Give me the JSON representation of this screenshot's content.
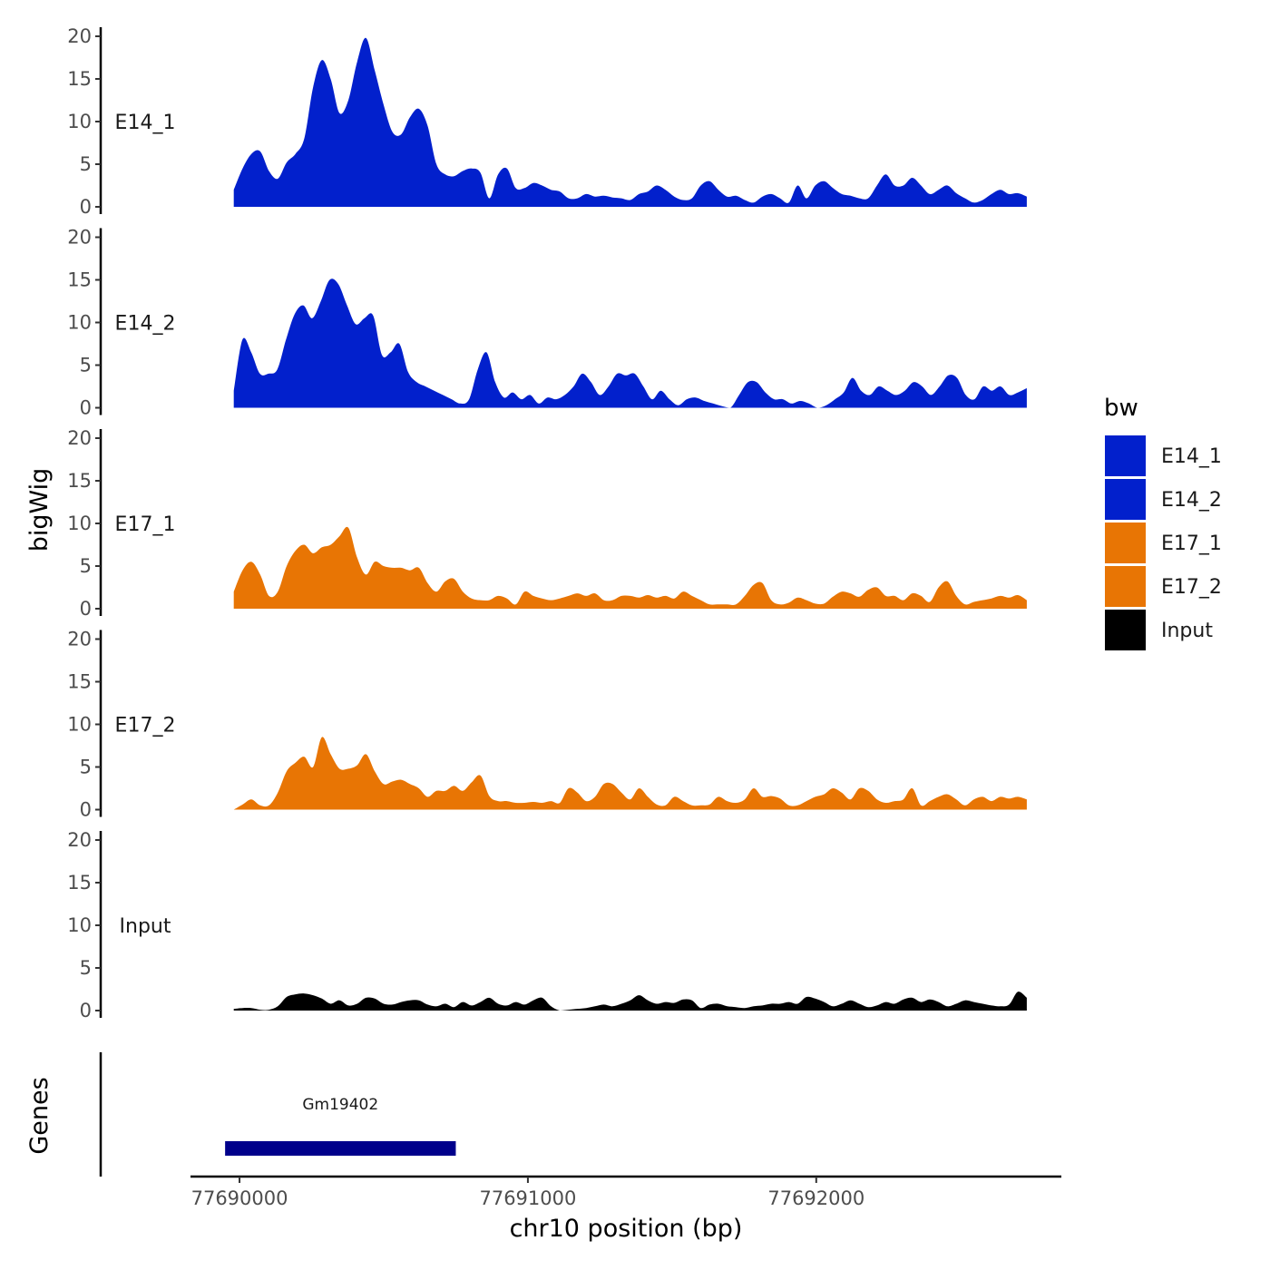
{
  "chart_data": {
    "type": "area",
    "title": "",
    "ylabel": "bigWig",
    "xlabel": "chr10 position (bp)",
    "genes_label": "Genes",
    "ylim": [
      0,
      20
    ],
    "yticks": [
      0,
      5,
      10,
      15,
      20
    ],
    "xlim": [
      77689830,
      77692850
    ],
    "xticks": [
      77690000,
      77691000,
      77692000
    ],
    "xtick_labels": [
      "77690000",
      "77691000",
      "77692000"
    ],
    "x_start": 77689980,
    "x_end": 77692730,
    "legend": {
      "title": "bw",
      "placement": "right",
      "entries": [
        {
          "label": "E14_1",
          "color": "#0220CC"
        },
        {
          "label": "E14_2",
          "color": "#0220CC"
        },
        {
          "label": "E17_1",
          "color": "#E87504"
        },
        {
          "label": "E17_2",
          "color": "#E87504"
        },
        {
          "label": "Input",
          "color": "#000000"
        }
      ]
    },
    "series": [
      {
        "name": "E14_1",
        "color": "#0220CC",
        "values": [
          2,
          4.5,
          6.2,
          6.5,
          4.2,
          3.3,
          5.2,
          6.2,
          8,
          14,
          17.2,
          15,
          11,
          12.5,
          17,
          19.8,
          16,
          12,
          8.8,
          8.5,
          10.5,
          11.5,
          9.5,
          5,
          3.8,
          3.6,
          4.2,
          4.5,
          4,
          1,
          3.8,
          4.5,
          2.2,
          2.2,
          2.8,
          2.5,
          2,
          1.8,
          1,
          1,
          1.5,
          1.2,
          1.3,
          1.1,
          1,
          0.8,
          1.5,
          1.8,
          2.5,
          2,
          1.2,
          0.8,
          1,
          2.5,
          3,
          2,
          1.2,
          1.3,
          0.8,
          0.5,
          1.2,
          1.5,
          1,
          0.5,
          2.5,
          1,
          2.5,
          3,
          2.2,
          1.5,
          1.3,
          1,
          1,
          2.5,
          3.8,
          2.5,
          2.5,
          3.4,
          2.5,
          1.5,
          2,
          2.5,
          1.6,
          1,
          0.5,
          0.8,
          1.5,
          2,
          1.5,
          1.6,
          1.2
        ]
      },
      {
        "name": "E14_2",
        "color": "#0220CC",
        "values": [
          2,
          8,
          6.5,
          4,
          4,
          4.5,
          8,
          11,
          12,
          10.5,
          12.5,
          15,
          14.5,
          12,
          9.8,
          10.5,
          10.8,
          6.2,
          6.5,
          7.5,
          4.2,
          3,
          2.5,
          2,
          1.5,
          1,
          0.5,
          1,
          4.5,
          6.5,
          3,
          1.2,
          1.8,
          1,
          1.5,
          0.5,
          1.2,
          1,
          1.5,
          2.5,
          4,
          3,
          1.5,
          2.5,
          4,
          3.8,
          4,
          2.5,
          1,
          2,
          1,
          0.3,
          1,
          1.2,
          0.8,
          0.5,
          0.2,
          0,
          1.5,
          3,
          3,
          1.8,
          1,
          1,
          0.5,
          0.8,
          0.5,
          0,
          0.3,
          1,
          1.8,
          3.5,
          2,
          1.5,
          2.5,
          2,
          1.5,
          2,
          3,
          2.5,
          1.5,
          2.5,
          3.8,
          3.5,
          1.5,
          1,
          2.5,
          2,
          2.5,
          1.5,
          1.8,
          2.3
        ]
      },
      {
        "name": "E17_1",
        "color": "#E87504",
        "values": [
          2,
          4.5,
          5.5,
          4,
          1.5,
          2,
          5,
          6.8,
          7.5,
          6.5,
          7.2,
          7.5,
          8.5,
          9.5,
          6,
          4,
          5.5,
          5,
          4.8,
          4.8,
          4.5,
          4.8,
          3,
          2,
          3.2,
          3.5,
          2,
          1.2,
          1,
          1,
          1.5,
          1.2,
          0.5,
          2,
          1.5,
          1.2,
          1,
          1.2,
          1.5,
          1.8,
          1.5,
          1.8,
          1,
          1,
          1.5,
          1.5,
          1.3,
          1.6,
          1.3,
          1.5,
          1.2,
          2,
          1.5,
          1,
          0.5,
          0.5,
          0.5,
          0.5,
          1.5,
          2.8,
          3,
          1,
          0.5,
          0.7,
          1.3,
          1,
          0.6,
          0.6,
          1.4,
          2,
          1.8,
          1.4,
          2.2,
          2.5,
          1.5,
          1.5,
          1,
          1.8,
          1.5,
          0.8,
          2.5,
          3.2,
          1.5,
          0.5,
          0.8,
          1,
          1.2,
          1.5,
          1.3,
          1.6,
          1
        ]
      },
      {
        "name": "E17_2",
        "color": "#E87504",
        "values": [
          0,
          0.6,
          1.2,
          0.5,
          0.5,
          2,
          4.5,
          5.5,
          6.2,
          5,
          8.5,
          6.5,
          4.8,
          4.8,
          5.2,
          6.5,
          4.5,
          3,
          3.3,
          3.5,
          3,
          2.5,
          1.5,
          2.2,
          2.2,
          2.8,
          2.2,
          3.2,
          4,
          1.6,
          1,
          1,
          0.8,
          0.8,
          0.9,
          0.8,
          1,
          0.8,
          2.5,
          2,
          1,
          1.5,
          3,
          3,
          2,
          1.2,
          2.5,
          1.5,
          0.6,
          0.5,
          1.5,
          1,
          0.5,
          0.5,
          0.6,
          1.5,
          1,
          0.8,
          1.2,
          2.5,
          1.5,
          1.6,
          1.3,
          0.5,
          0.5,
          1,
          1.5,
          1.8,
          2.5,
          2,
          1.2,
          2.5,
          2.2,
          1.2,
          0.8,
          1,
          1.2,
          2.5,
          0.5,
          1,
          1.5,
          1.8,
          1.2,
          0.5,
          1.2,
          1.5,
          1,
          1.5,
          1.3,
          1.5,
          1.2
        ]
      },
      {
        "name": "Input",
        "color": "#000000",
        "values": [
          0.2,
          0.3,
          0.3,
          0.1,
          0.1,
          0.5,
          1.6,
          1.9,
          2,
          1.8,
          1.4,
          0.8,
          1.2,
          0.6,
          0.8,
          1.5,
          1.4,
          0.8,
          0.7,
          1,
          1.2,
          1.2,
          0.7,
          0.5,
          0.8,
          0.4,
          1,
          0.6,
          1,
          1.5,
          0.8,
          0.6,
          1,
          0.7,
          1.2,
          1.5,
          0.5,
          0,
          0.1,
          0.2,
          0.3,
          0.5,
          0.7,
          0.5,
          0.8,
          1.2,
          1.8,
          1.2,
          0.8,
          1,
          0.9,
          1.3,
          1.2,
          0.3,
          0.7,
          0.8,
          0.5,
          0.4,
          0.3,
          0.5,
          0.6,
          0.8,
          0.8,
          1,
          0.8,
          1.6,
          1.4,
          1,
          0.5,
          0.8,
          1.2,
          0.8,
          0.4,
          0.6,
          1,
          0.8,
          1.3,
          1.5,
          1,
          1.3,
          1,
          0.5,
          0.8,
          1.2,
          1,
          0.8,
          0.6,
          0.5,
          0.7,
          2.2,
          1.5
        ]
      }
    ],
    "genes": [
      {
        "name": "Gm19402",
        "start": 77689950,
        "end": 77690750,
        "color": "#00008B"
      }
    ]
  }
}
